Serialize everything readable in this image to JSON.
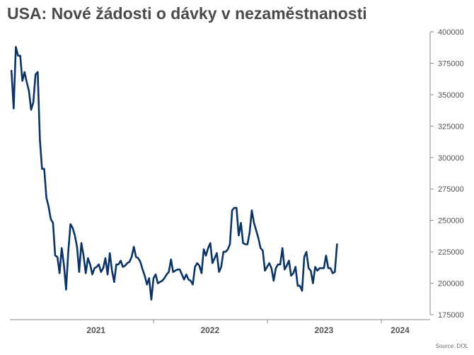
{
  "title": "USA: Nové žádosti o dávky v nezaměstnanosti",
  "source": "Source: DOL",
  "colors": {
    "line": "#0b3466",
    "axis": "#888888",
    "tick_text": "#555555",
    "title": "#4a4a4a"
  },
  "chart_data": {
    "type": "line",
    "title": "USA: Nové žádosti o dávky v nezaměstnanosti",
    "xlabel": "",
    "ylabel": "",
    "y_axis_position": "right",
    "grid": false,
    "legend": "none",
    "ylim": [
      175000,
      400000
    ],
    "yticks": [
      175000,
      200000,
      225000,
      250000,
      275000,
      300000,
      325000,
      350000,
      375000,
      400000
    ],
    "ytick_labels": [
      "175000",
      "200000",
      "225000",
      "250000",
      "275000",
      "300000",
      "325000",
      "350000",
      "375000",
      "400000"
    ],
    "x_start": "2020-10-03",
    "x_step_days": 7,
    "x_end": "2024-05-04",
    "xlim": [
      "2020-09-28",
      "2024-05-25"
    ],
    "year_labels": [
      {
        "label": "2021",
        "date": "2021-07-01"
      },
      {
        "label": "2022",
        "date": "2022-07-01"
      },
      {
        "label": "2023",
        "date": "2023-07-01"
      },
      {
        "label": "2024",
        "date": "2024-03-01"
      }
    ],
    "year_dividers": [
      "2022-01-01",
      "2023-01-01",
      "2024-01-01"
    ],
    "series": [
      {
        "values": [
          369000,
          339000,
          388000,
          381000,
          381000,
          361000,
          368000,
          360000,
          353000,
          338000,
          344000,
          366000,
          368000,
          314000,
          291000,
          291000,
          268000,
          261000,
          251000,
          248000,
          222000,
          221000,
          208000,
          228000,
          215000,
          195000,
          225000,
          247000,
          244000,
          238000,
          229000,
          209000,
          232000,
          222000,
          208000,
          220000,
          215000,
          207000,
          212000,
          213000,
          215000,
          209000,
          212000,
          220000,
          207000,
          224000,
          210000,
          201000,
          215000,
          215000,
          218000,
          213000,
          214000,
          216000,
          217000,
          221000,
          229000,
          221000,
          220000,
          217000,
          211000,
          206000,
          199000,
          204000,
          187000,
          204000,
          207000,
          200000,
          201000,
          202000,
          204000,
          207000,
          209000,
          219000,
          209000,
          210000,
          211000,
          211000,
          207000,
          203000,
          207000,
          203000,
          202000,
          199000,
          213000,
          216000,
          214000,
          208000,
          227000,
          222000,
          228000,
          232000,
          216000,
          220000,
          224000,
          209000,
          213000,
          225000,
          225000,
          227000,
          231000,
          258000,
          260000,
          260000,
          238000,
          248000,
          232000,
          231000,
          231000,
          240000,
          258000,
          248000,
          242000,
          236000,
          228000,
          226000,
          210000,
          213000,
          216000,
          212000,
          202000,
          212000,
          215000,
          215000,
          228000,
          211000,
          214000,
          218000,
          206000,
          208000,
          213000,
          198000,
          198000,
          194000,
          221000,
          225000,
          212000,
          210000,
          200000,
          213000,
          210000,
          212000,
          212000,
          212000,
          222000,
          212000,
          212000,
          208000,
          209000,
          231000
        ]
      }
    ]
  }
}
